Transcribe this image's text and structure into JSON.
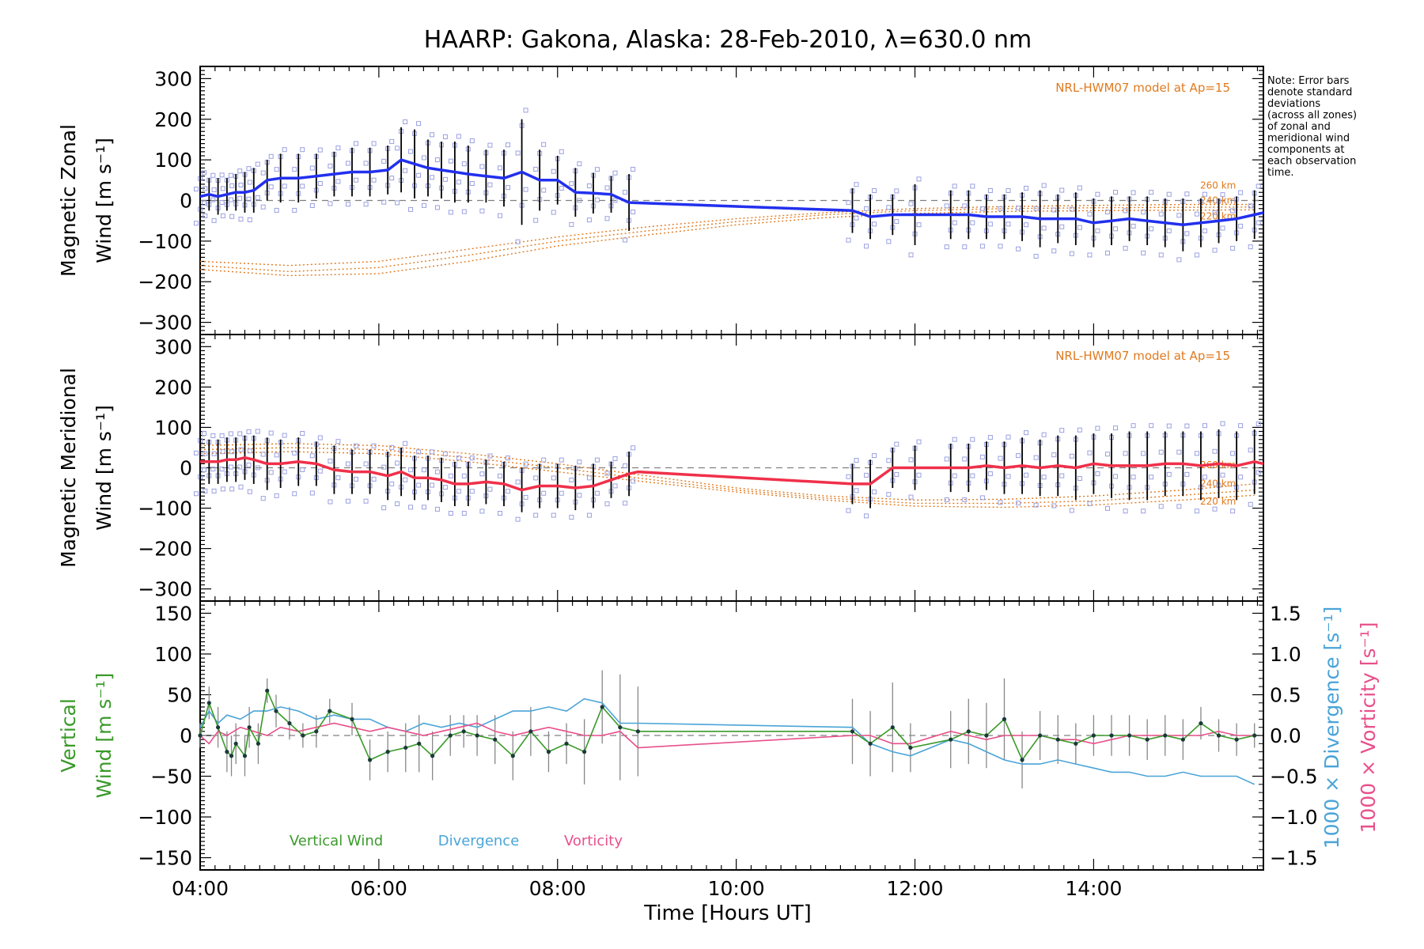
{
  "title": "HAARP: Gakona,  Alaska: 28-Feb-2010, λ=630.0 nm",
  "note": [
    "Note: Error bars",
    "denote standard",
    "deviations",
    "(across all zones)",
    "of zonal and",
    "meridional wind",
    "components at",
    "each observation",
    "time."
  ],
  "xlabel": "Time [Hours UT]",
  "xticks": [
    {
      "v": 4,
      "label": "04:00"
    },
    {
      "v": 6,
      "label": "06:00"
    },
    {
      "v": 8,
      "label": "08:00"
    },
    {
      "v": 10,
      "label": "10:00"
    },
    {
      "v": 12,
      "label": "12:00"
    },
    {
      "v": 14,
      "label": "14:00"
    }
  ],
  "colors": {
    "zonal": "#2230ee",
    "meridional": "#f0304a",
    "vertical": "#3a9a2a",
    "divergence": "#4aa4d8",
    "vorticity": "#e8508a",
    "model": "#e07a1e",
    "scatter": "#9aa0e0",
    "errorbar": "#000000",
    "dashed": "#808080"
  },
  "chart_data": [
    {
      "type": "line",
      "name": "zonal",
      "ylabel": [
        "Magnetic Zonal",
        "Wind [m s⁻¹]"
      ],
      "ylim": [
        -330,
        330
      ],
      "yticks": [
        300,
        200,
        100,
        0,
        -100,
        -200,
        -300
      ],
      "xlim": [
        4.0,
        15.9
      ],
      "model_label": "NRL-HWM07 model at Ap=15",
      "model_alt_labels": [
        "260 km",
        "240 km",
        "220 km"
      ],
      "x": [
        4.0,
        4.1,
        4.2,
        4.3,
        4.4,
        4.5,
        4.6,
        4.75,
        4.9,
        5.1,
        5.3,
        5.5,
        5.7,
        5.9,
        6.1,
        6.25,
        6.4,
        6.55,
        6.7,
        6.85,
        7.0,
        7.2,
        7.4,
        7.6,
        7.8,
        8.0,
        8.2,
        8.4,
        8.6,
        8.8,
        11.3,
        11.5,
        11.75,
        12.0,
        12.4,
        12.6,
        12.8,
        13.0,
        13.2,
        13.4,
        13.6,
        13.8,
        14.0,
        14.2,
        14.4,
        14.6,
        14.8,
        15.0,
        15.2,
        15.4,
        15.6,
        15.8,
        15.9
      ],
      "y": [
        10,
        15,
        10,
        15,
        20,
        20,
        25,
        50,
        55,
        55,
        60,
        65,
        70,
        70,
        75,
        100,
        90,
        80,
        75,
        70,
        65,
        60,
        55,
        70,
        50,
        50,
        20,
        18,
        15,
        -5,
        -25,
        -40,
        -35,
        -35,
        -35,
        -35,
        -40,
        -40,
        -40,
        -45,
        -45,
        -45,
        -55,
        -50,
        -45,
        -50,
        -55,
        -60,
        -55,
        -50,
        -45,
        -35,
        -30
      ],
      "err": [
        50,
        40,
        45,
        40,
        45,
        50,
        55,
        50,
        60,
        60,
        55,
        55,
        60,
        60,
        60,
        80,
        85,
        70,
        70,
        75,
        70,
        65,
        70,
        130,
        75,
        60,
        60,
        50,
        45,
        70,
        55,
        55,
        50,
        75,
        60,
        60,
        55,
        55,
        60,
        70,
        60,
        65,
        60,
        60,
        55,
        60,
        60,
        65,
        60,
        55,
        55,
        60,
        0
      ],
      "models": [
        {
          "label": "260 km",
          "x": [
            4.0,
            5.0,
            6.0,
            7.0,
            8.0,
            9.0,
            10.0,
            11.0,
            12.0,
            13.0,
            14.0,
            15.0,
            15.8
          ],
          "y": [
            -150,
            -160,
            -150,
            -120,
            -90,
            -65,
            -45,
            -30,
            -20,
            -15,
            -12,
            -10,
            -10
          ]
        },
        {
          "label": "240 km",
          "x": [
            4.0,
            5.0,
            6.0,
            7.0,
            8.0,
            9.0,
            10.0,
            11.0,
            12.0,
            13.0,
            14.0,
            15.0,
            15.8
          ],
          "y": [
            -160,
            -175,
            -165,
            -135,
            -100,
            -75,
            -52,
            -35,
            -25,
            -20,
            -18,
            -17,
            -16
          ]
        },
        {
          "label": "220 km",
          "x": [
            4.0,
            5.0,
            6.0,
            7.0,
            8.0,
            9.0,
            10.0,
            11.0,
            12.0,
            13.0,
            14.0,
            15.0,
            15.8
          ],
          "y": [
            -170,
            -185,
            -180,
            -150,
            -112,
            -85,
            -60,
            -42,
            -32,
            -27,
            -25,
            -24,
            -23
          ]
        }
      ]
    },
    {
      "type": "line",
      "name": "meridional",
      "ylabel": [
        "Magnetic Meridional",
        "Wind [m s⁻¹]"
      ],
      "ylim": [
        -330,
        330
      ],
      "yticks": [
        300,
        200,
        100,
        0,
        -100,
        -200,
        -300
      ],
      "xlim": [
        4.0,
        15.9
      ],
      "model_label": "NRL-HWM07 model at Ap=15",
      "model_alt_labels": [
        "260 km",
        "240 km",
        "220 km"
      ],
      "x": [
        4.0,
        4.1,
        4.2,
        4.3,
        4.4,
        4.5,
        4.6,
        4.75,
        4.9,
        5.1,
        5.3,
        5.5,
        5.7,
        5.9,
        6.1,
        6.25,
        6.4,
        6.55,
        6.7,
        6.85,
        7.0,
        7.2,
        7.4,
        7.6,
        7.8,
        8.0,
        8.2,
        8.4,
        8.6,
        8.8,
        8.9,
        11.3,
        11.5,
        11.75,
        12.0,
        12.4,
        12.6,
        12.8,
        13.0,
        13.2,
        13.4,
        13.6,
        13.8,
        14.0,
        14.2,
        14.4,
        14.6,
        14.8,
        15.0,
        15.2,
        15.4,
        15.6,
        15.8,
        15.9
      ],
      "y": [
        15,
        15,
        15,
        20,
        20,
        25,
        20,
        10,
        10,
        15,
        10,
        -5,
        -10,
        -10,
        -20,
        -10,
        -25,
        -25,
        -30,
        -40,
        -40,
        -35,
        -40,
        -55,
        -45,
        -45,
        -50,
        -45,
        -30,
        -15,
        -10,
        -40,
        -40,
        0,
        0,
        0,
        0,
        5,
        0,
        5,
        0,
        5,
        0,
        10,
        5,
        5,
        5,
        10,
        10,
        5,
        10,
        5,
        15,
        10
      ],
      "err": [
        60,
        55,
        55,
        55,
        55,
        55,
        60,
        65,
        60,
        60,
        55,
        60,
        55,
        55,
        60,
        60,
        55,
        55,
        55,
        55,
        55,
        55,
        55,
        55,
        55,
        55,
        55,
        55,
        45,
        55,
        0,
        50,
        60,
        50,
        55,
        60,
        60,
        60,
        65,
        70,
        70,
        75,
        80,
        75,
        80,
        85,
        85,
        80,
        80,
        85,
        85,
        85,
        80,
        0
      ],
      "models": [
        {
          "label": "260 km",
          "x": [
            4.0,
            5.0,
            6.0,
            7.0,
            8.0,
            9.0,
            10.0,
            11.0,
            12.0,
            13.0,
            14.0,
            15.0,
            15.8
          ],
          "y": [
            55,
            60,
            55,
            35,
            10,
            -20,
            -50,
            -70,
            -80,
            -78,
            -70,
            -55,
            -40
          ]
        },
        {
          "label": "240 km",
          "x": [
            4.0,
            5.0,
            6.0,
            7.0,
            8.0,
            9.0,
            10.0,
            11.0,
            12.0,
            13.0,
            14.0,
            15.0,
            15.8
          ],
          "y": [
            45,
            50,
            45,
            25,
            0,
            -28,
            -55,
            -75,
            -88,
            -88,
            -82,
            -68,
            -55
          ]
        },
        {
          "label": "220 km",
          "x": [
            4.0,
            5.0,
            6.0,
            7.0,
            8.0,
            9.0,
            10.0,
            11.0,
            12.0,
            13.0,
            14.0,
            15.0,
            15.8
          ],
          "y": [
            35,
            40,
            35,
            15,
            -10,
            -35,
            -60,
            -80,
            -95,
            -98,
            -92,
            -80,
            -68
          ]
        }
      ]
    },
    {
      "type": "line",
      "name": "vertical",
      "ylabel": [
        "Vertical",
        "Wind [m s⁻¹]"
      ],
      "ylim": [
        -165,
        165
      ],
      "yticks": [
        150,
        100,
        50,
        0,
        -50,
        -100,
        -150
      ],
      "xlim": [
        4.0,
        15.9
      ],
      "y2label_div": "1000 × Divergence [s⁻¹]",
      "y2label_vort": "1000 × Vorticity [s⁻¹]",
      "y2lim": [
        -1.65,
        1.65
      ],
      "y2ticks": [
        "1.5",
        "1.0",
        "0.5",
        "0.0",
        "−0.5",
        "−1.0",
        "−1.5"
      ],
      "y2tick_values": [
        1.5,
        1.0,
        0.5,
        0.0,
        -0.5,
        -1.0,
        -1.5
      ],
      "legend": [
        "Vertical Wind",
        "Divergence",
        "Vorticity"
      ],
      "x": [
        4.0,
        4.1,
        4.2,
        4.3,
        4.35,
        4.4,
        4.5,
        4.55,
        4.65,
        4.75,
        4.85,
        5.0,
        5.15,
        5.3,
        5.45,
        5.7,
        5.9,
        6.1,
        6.3,
        6.45,
        6.6,
        6.8,
        6.95,
        7.1,
        7.3,
        7.5,
        7.7,
        7.9,
        8.1,
        8.3,
        8.5,
        8.7,
        8.9,
        11.3,
        11.5,
        11.75,
        11.95,
        12.4,
        12.6,
        12.8,
        13.0,
        13.2,
        13.4,
        13.6,
        13.8,
        14.0,
        14.2,
        14.4,
        14.6,
        14.8,
        15.0,
        15.2,
        15.4,
        15.6,
        15.8
      ],
      "y": [
        0,
        40,
        10,
        -20,
        -25,
        -10,
        -25,
        10,
        -10,
        55,
        30,
        15,
        0,
        5,
        30,
        20,
        -30,
        -20,
        -15,
        -10,
        -25,
        0,
        5,
        0,
        -5,
        -25,
        5,
        -20,
        -10,
        -20,
        35,
        10,
        5,
        5,
        -10,
        10,
        -15,
        -5,
        5,
        0,
        20,
        -30,
        0,
        -5,
        -10,
        0,
        0,
        0,
        -5,
        0,
        -5,
        15,
        0,
        -5,
        0
      ],
      "err": [
        15,
        20,
        25,
        25,
        25,
        25,
        25,
        25,
        25,
        15,
        20,
        20,
        15,
        20,
        15,
        20,
        25,
        25,
        30,
        35,
        30,
        25,
        20,
        25,
        30,
        30,
        30,
        25,
        25,
        40,
        45,
        65,
        55,
        40,
        40,
        55,
        30,
        35,
        40,
        40,
        50,
        35,
        30,
        30,
        25,
        25,
        25,
        25,
        25,
        25,
        25,
        20,
        20,
        20,
        15
      ],
      "div_x": [
        4.0,
        4.1,
        4.2,
        4.3,
        4.45,
        4.6,
        4.75,
        4.9,
        5.1,
        5.3,
        5.5,
        5.7,
        5.9,
        6.1,
        6.3,
        6.5,
        6.7,
        6.9,
        7.1,
        7.3,
        7.5,
        7.7,
        7.9,
        8.1,
        8.3,
        8.5,
        8.7,
        8.9,
        11.3,
        11.5,
        11.75,
        11.95,
        12.4,
        12.6,
        12.8,
        13.0,
        13.2,
        13.4,
        13.6,
        13.8,
        14.0,
        14.2,
        14.4,
        14.6,
        14.8,
        15.0,
        15.2,
        15.4,
        15.6,
        15.8
      ],
      "div_y": [
        0.1,
        0.3,
        0.15,
        0.25,
        0.2,
        0.3,
        0.3,
        0.35,
        0.3,
        0.2,
        0.25,
        0.2,
        0.2,
        0.1,
        0.05,
        0.15,
        0.1,
        0.15,
        0.1,
        0.2,
        0.3,
        0.3,
        0.35,
        0.3,
        0.45,
        0.4,
        0.15,
        0.15,
        0.1,
        -0.1,
        -0.2,
        -0.25,
        -0.05,
        -0.1,
        -0.2,
        -0.3,
        -0.35,
        -0.35,
        -0.3,
        -0.35,
        -0.4,
        -0.45,
        -0.45,
        -0.5,
        -0.5,
        -0.45,
        -0.5,
        -0.5,
        -0.5,
        -0.6
      ],
      "vort_x": [
        4.0,
        4.1,
        4.2,
        4.3,
        4.45,
        4.6,
        4.75,
        4.9,
        5.1,
        5.3,
        5.5,
        5.7,
        5.9,
        6.1,
        6.3,
        6.5,
        6.7,
        6.9,
        7.1,
        7.3,
        7.5,
        7.7,
        7.9,
        8.1,
        8.3,
        8.5,
        8.7,
        8.9,
        11.3,
        11.5,
        11.75,
        11.95,
        12.4,
        12.6,
        12.8,
        13.0,
        13.2,
        13.4,
        13.6,
        13.8,
        14.0,
        14.2,
        14.4,
        14.6,
        14.8,
        15.0,
        15.2,
        15.4,
        15.6,
        15.8
      ],
      "vort_y": [
        0.0,
        -0.1,
        0.05,
        0.0,
        0.1,
        0.05,
        0.0,
        0.1,
        0.05,
        0.1,
        0.15,
        0.1,
        0.05,
        0.1,
        0.05,
        0.0,
        0.05,
        0.1,
        0.15,
        0.05,
        0.0,
        0.05,
        0.1,
        0.05,
        0.0,
        0.0,
        0.05,
        -0.15,
        0.0,
        0.0,
        -0.1,
        -0.1,
        0.05,
        0.0,
        -0.05,
        0.0,
        0.0,
        0.0,
        -0.05,
        -0.05,
        -0.1,
        -0.05,
        0.0,
        0.0,
        0.0,
        0.0,
        0.0,
        0.05,
        0.0,
        0.0
      ]
    }
  ]
}
